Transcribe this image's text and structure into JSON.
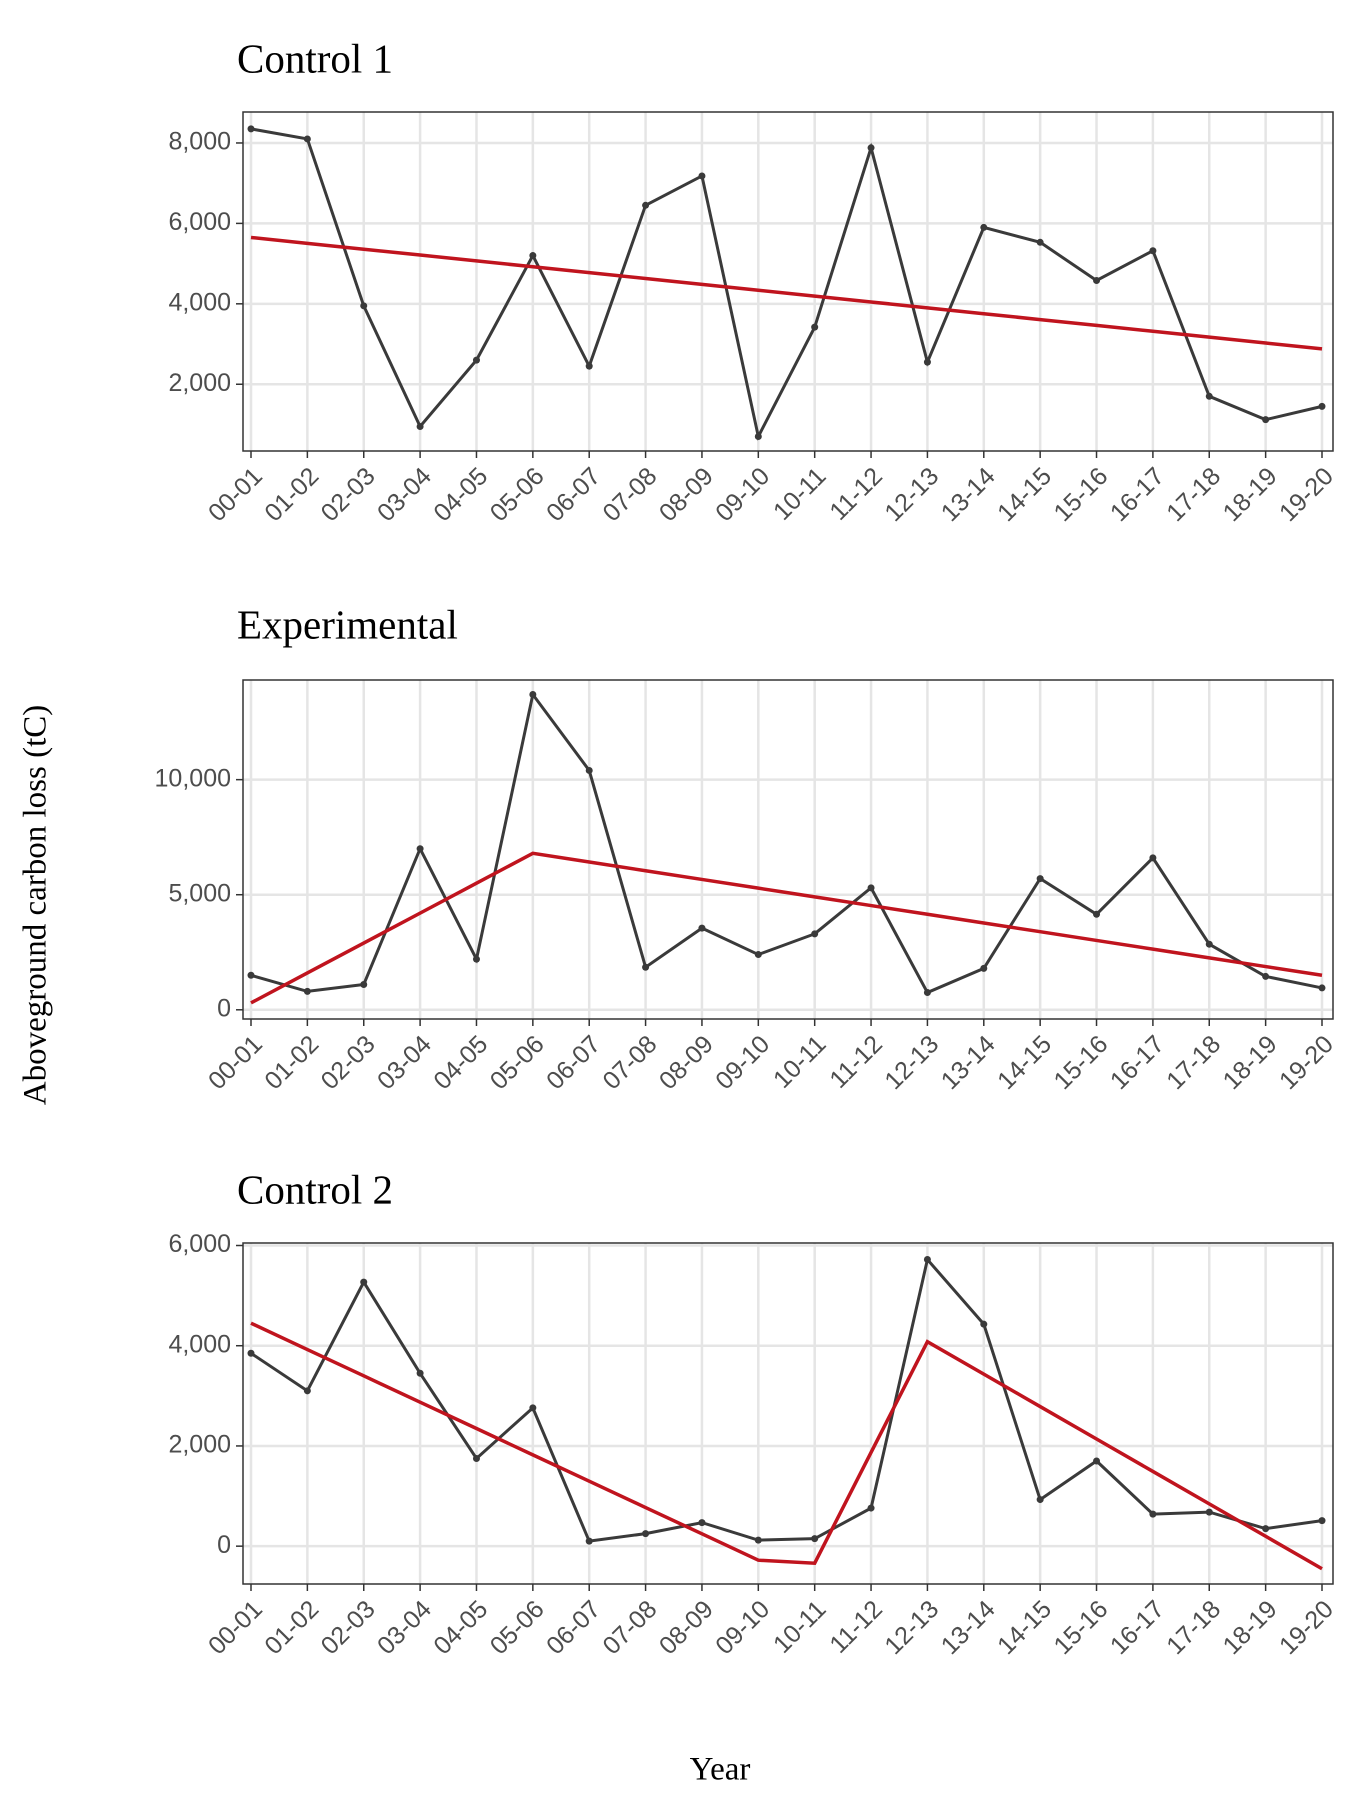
{
  "ylabel": "Aboveground carbon loss (tC)",
  "xlabel": "Year",
  "chart_data": [
    {
      "type": "line",
      "title": "Control 1",
      "categories": [
        "00-01",
        "01-02",
        "02-03",
        "03-04",
        "04-05",
        "05-06",
        "06-07",
        "07-08",
        "08-09",
        "09-10",
        "10-11",
        "11-12",
        "12-13",
        "13-14",
        "14-15",
        "15-16",
        "16-17",
        "17-18",
        "18-19",
        "19-20"
      ],
      "series": [
        {
          "color": "#3a3a3a",
          "points": true,
          "values": [
            8350,
            8100,
            3950,
            950,
            2600,
            5200,
            2450,
            6450,
            7180,
            700,
            3420,
            7880,
            2550,
            5900,
            5530,
            4580,
            5320,
            1700,
            1120,
            1450
          ]
        },
        {
          "color": "#c0141e",
          "points": false,
          "values": [
            5650,
            5504,
            5358,
            5213,
            5067,
            4921,
            4775,
            4629,
            4483,
            4338,
            4192,
            4046,
            3900,
            3754,
            3608,
            3463,
            3317,
            3171,
            3025,
            2880
          ]
        }
      ],
      "ylim": [
        340,
        8770
      ],
      "yticks": [
        {
          "value": 2000,
          "label": "2,000"
        },
        {
          "value": 4000,
          "label": "4,000"
        },
        {
          "value": 6000,
          "label": "6,000"
        },
        {
          "value": 8000,
          "label": "8,000"
        }
      ],
      "grid": true
    },
    {
      "type": "line",
      "title": "Experimental",
      "categories": [
        "00-01",
        "01-02",
        "02-03",
        "03-04",
        "04-05",
        "05-06",
        "06-07",
        "07-08",
        "08-09",
        "09-10",
        "10-11",
        "11-12",
        "12-13",
        "13-14",
        "14-15",
        "15-16",
        "16-17",
        "17-18",
        "18-19",
        "19-20"
      ],
      "series": [
        {
          "color": "#3a3a3a",
          "points": true,
          "values": [
            1500,
            800,
            1100,
            7000,
            2200,
            13700,
            10400,
            1850,
            3550,
            2400,
            3300,
            5300,
            750,
            1800,
            5700,
            4150,
            6600,
            2850,
            1450,
            950
          ]
        },
        {
          "color": "#c0141e",
          "points": false,
          "values": [
            300,
            1600,
            2900,
            4200,
            5500,
            6800,
            6421,
            6043,
            5664,
            5286,
            4907,
            4529,
            4150,
            3771,
            3393,
            3014,
            2636,
            2257,
            1879,
            1500
          ]
        }
      ],
      "ylim": [
        -400,
        14330
      ],
      "yticks": [
        0,
        {
          "value": 5000,
          "label": "5,000"
        },
        {
          "value": 10000,
          "label": "10,000"
        }
      ],
      "grid": true
    },
    {
      "type": "line",
      "title": "Control 2",
      "categories": [
        "00-01",
        "01-02",
        "02-03",
        "03-04",
        "04-05",
        "05-06",
        "06-07",
        "07-08",
        "08-09",
        "09-10",
        "10-11",
        "11-12",
        "12-13",
        "13-14",
        "14-15",
        "15-16",
        "16-17",
        "17-18",
        "18-19",
        "19-20"
      ],
      "series": [
        {
          "color": "#3a3a3a",
          "points": true,
          "values": [
            3850,
            3100,
            5270,
            3450,
            1750,
            2760,
            100,
            250,
            470,
            120,
            150,
            760,
            5720,
            4430,
            930,
            1700,
            640,
            680,
            350,
            510
          ]
        },
        {
          "color": "#c0141e",
          "points": false,
          "values": [
            4450,
            3924,
            3399,
            2873,
            2348,
            1822,
            1297,
            771,
            246,
            -280,
            -340,
            1870,
            4080,
            3433,
            2786,
            2139,
            1491,
            844,
            197,
            -450
          ]
        }
      ],
      "ylim": [
        -755,
        6050
      ],
      "yticks": [
        0,
        {
          "value": 2000,
          "label": "2,000"
        },
        {
          "value": 4000,
          "label": "4,000"
        },
        {
          "value": 6000,
          "label": "6,000"
        }
      ],
      "grid": true
    }
  ]
}
